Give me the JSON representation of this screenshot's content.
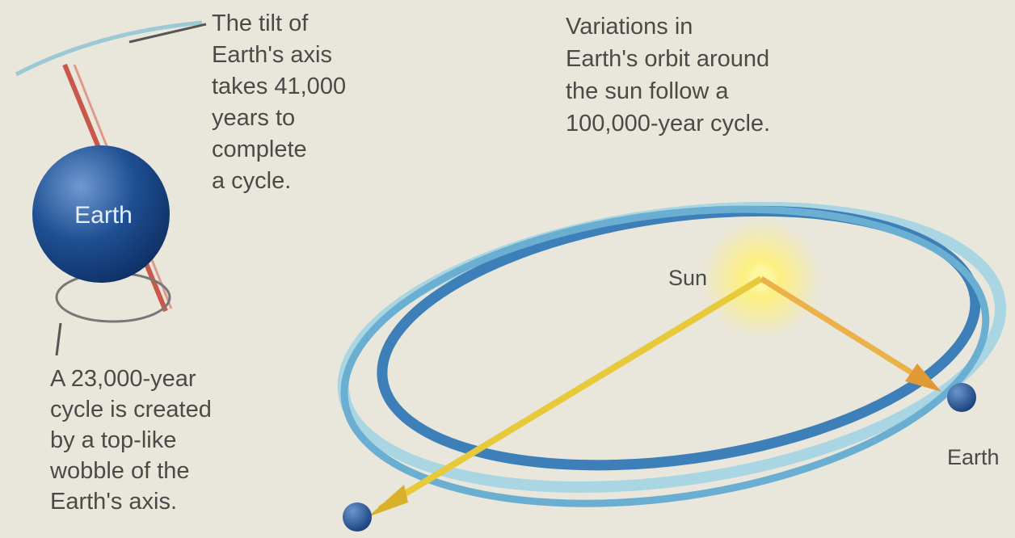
{
  "tilt_text": [
    "The tilt of",
    "Earth's axis",
    "takes 41,000",
    "years to",
    "complete",
    "a cycle."
  ],
  "orbit_text": [
    "Variations in",
    "Earth's orbit around",
    "the sun follow a",
    "100,000-year cycle."
  ],
  "wobble_text": [
    "A 23,000-year",
    "cycle is created",
    "by a top-like",
    "wobble of the",
    "Earth's axis."
  ],
  "earth_globe_label": "Earth",
  "sun_label": "Sun",
  "earth_orbit_label": "Earth"
}
